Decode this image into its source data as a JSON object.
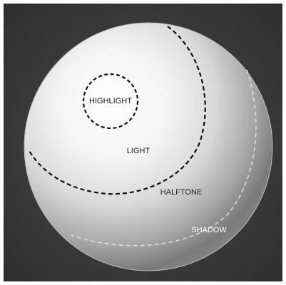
{
  "labels": {
    "highlight": "HIGHLIGHT",
    "light": "LIGHT",
    "halftone": "HALFTONE",
    "shadow": "SHADOW"
  }
}
